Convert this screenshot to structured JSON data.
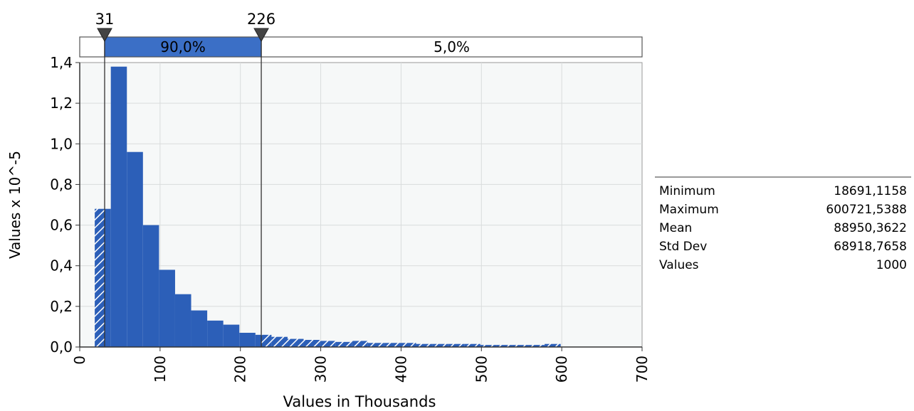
{
  "chart_data": {
    "type": "bar",
    "xlabel": "Values in Thousands",
    "ylabel": "Values x 10^-5",
    "xlim": [
      0,
      700
    ],
    "ylim": [
      0,
      1.4
    ],
    "x_ticks": [
      0,
      100,
      200,
      300,
      400,
      500,
      600,
      700
    ],
    "x_tick_labels": [
      "0",
      "100",
      "200",
      "300",
      "400",
      "500",
      "600",
      "700"
    ],
    "y_ticks": [
      0,
      0.2,
      0.4,
      0.6,
      0.8,
      1.0,
      1.2,
      1.4
    ],
    "y_tick_labels": [
      "0,0",
      "0,2",
      "0,4",
      "0,6",
      "0,8",
      "1,0",
      "1,2",
      "1,4"
    ],
    "grid": true,
    "bin_edges": [
      18.7,
      38.7,
      58.7,
      78.7,
      98.7,
      118.7,
      138.7,
      158.7,
      178.7,
      198.7,
      218.7,
      238.7,
      258.7,
      278.7,
      298.7,
      318.7,
      338.7,
      358.7,
      378.7,
      398.7,
      418.7,
      438.7,
      458.7,
      478.7,
      498.7,
      518.7,
      538.7,
      558.7,
      578.7,
      598.7
    ],
    "values": [
      0.68,
      1.38,
      0.96,
      0.6,
      0.38,
      0.26,
      0.18,
      0.13,
      0.11,
      0.07,
      0.06,
      0.05,
      0.04,
      0.035,
      0.03,
      0.025,
      0.03,
      0.02,
      0.02,
      0.02,
      0.015,
      0.015,
      0.015,
      0.015,
      0.01,
      0.01,
      0.01,
      0.01,
      0.015
    ],
    "color": "#2c5fb8",
    "delimiters": [
      {
        "value": 31,
        "label": "31"
      },
      {
        "value": 226,
        "label": "226"
      }
    ],
    "band": [
      {
        "from": 0,
        "to": 31,
        "label": ""
      },
      {
        "from": 31,
        "to": 226,
        "label": "90,0%",
        "color": "#3b6fc6"
      },
      {
        "from": 226,
        "to": 700,
        "label": "5,0%"
      }
    ]
  },
  "stats": [
    {
      "label": "Minimum",
      "value": "18691,1158"
    },
    {
      "label": "Maximum",
      "value": "600721,5388"
    },
    {
      "label": "Mean",
      "value": "88950,3622"
    },
    {
      "label": "Std Dev",
      "value": "68918,7658"
    },
    {
      "label": "Values",
      "value": "1000"
    }
  ]
}
